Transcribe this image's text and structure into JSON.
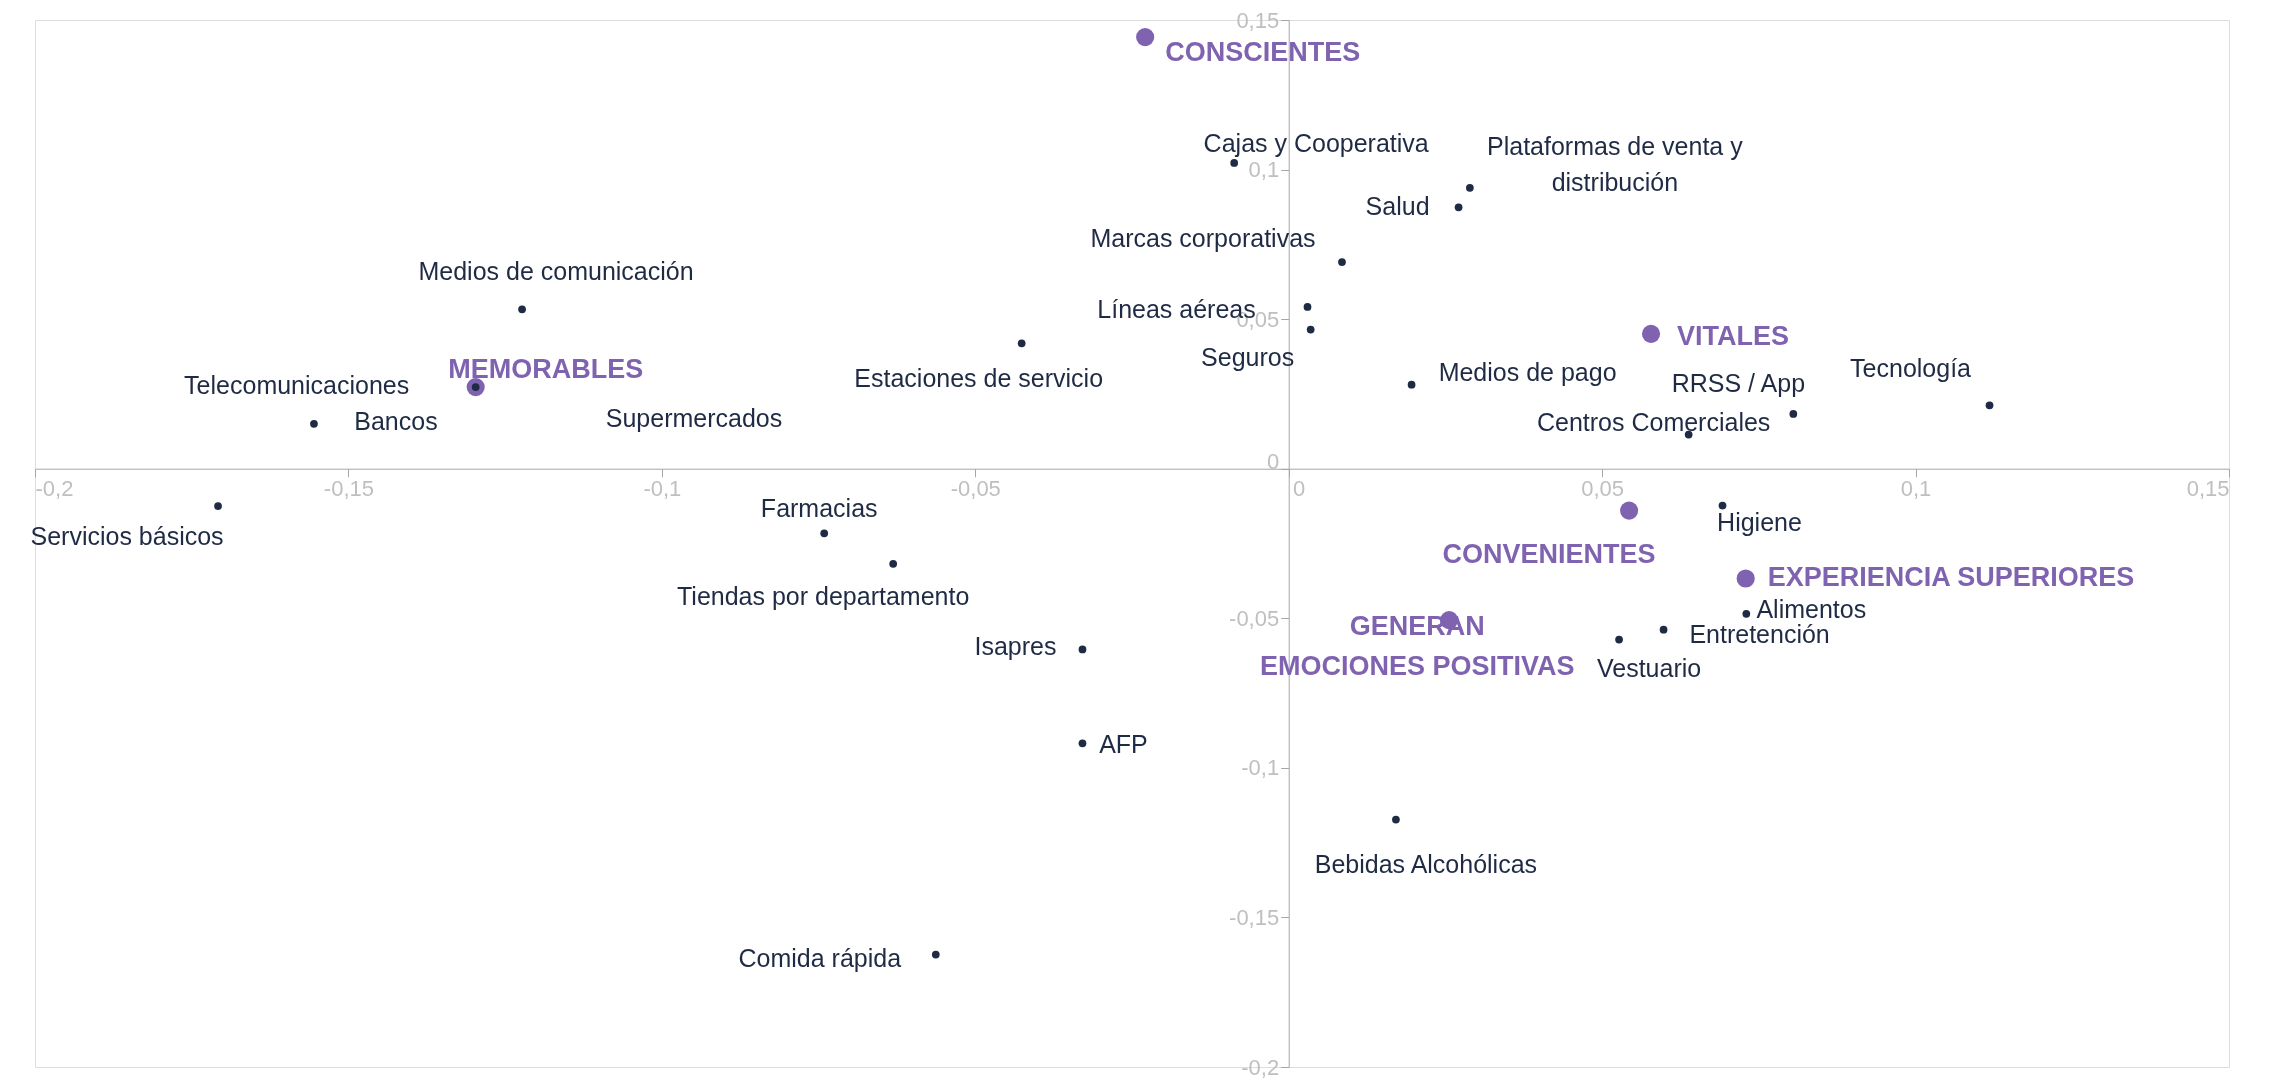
{
  "chart_data": {
    "type": "scatter",
    "marker": "circle",
    "grid": false,
    "xlim": [
      -0.2,
      0.15
    ],
    "ylim": [
      -0.2,
      0.15
    ],
    "xticks": [
      {
        "value": -0.2,
        "label": "-0,2"
      },
      {
        "value": -0.15,
        "label": "-0,15"
      },
      {
        "value": -0.1,
        "label": "-0,1"
      },
      {
        "value": -0.05,
        "label": "-0,05"
      },
      0,
      {
        "value": 0.05,
        "label": "0,05"
      },
      {
        "value": 0.1,
        "label": "0,1"
      },
      {
        "value": 0.15,
        "label": "0,15"
      }
    ],
    "yticks": [
      {
        "value": -0.2,
        "label": "-0,2"
      },
      {
        "value": -0.15,
        "label": "-0,15"
      },
      {
        "value": -0.1,
        "label": "-0,1"
      },
      {
        "value": -0.05,
        "label": "-0,05"
      },
      0,
      {
        "value": 0.05,
        "label": "0,05"
      },
      {
        "value": 0.1,
        "label": "0,1"
      },
      {
        "value": 0.15,
        "label": "0,15"
      }
    ],
    "series": [
      {
        "color": "#1f2a44",
        "x": [
          -0.1708,
          -0.1555,
          -0.1297,
          -0.1223,
          -0.0426,
          -0.0741,
          -0.0631,
          -0.0329,
          -0.0329,
          -0.0563,
          0.0171,
          -0.0087,
          0.0289,
          0.0271,
          0.0085,
          0.003,
          0.0035,
          0.0196,
          0.0805,
          0.0638,
          0.1118,
          0.0692,
          0.073,
          0.0598,
          0.0527
        ],
        "values": [
          -0.0125,
          0.015,
          0.0273,
          0.0533,
          0.0419,
          -0.0216,
          -0.0318,
          -0.0604,
          -0.0918,
          -0.1624,
          -0.1173,
          0.1022,
          0.0939,
          0.0874,
          0.0691,
          0.0541,
          0.0465,
          0.0281,
          0.0183,
          0.0114,
          0.0212,
          -0.0123,
          -0.0485,
          -0.0538,
          -0.0571
        ]
      },
      {
        "name": "CONSCIENTES",
        "color": "#7f63b0",
        "x": [
          -0.0229
        ],
        "values": [
          0.1443
        ]
      },
      {
        "name": "VITALES",
        "color": "#7f63b0",
        "x": [
          0.0578
        ],
        "values": [
          0.0451
        ]
      },
      {
        "name": "CONVENIENTES",
        "color": "#7f63b0",
        "x": [
          0.0543
        ],
        "values": [
          -0.014
        ]
      },
      {
        "name": "EXPERIENCIA SUPERIORES",
        "color": "#7f63b0",
        "x": [
          0.0729
        ],
        "values": [
          -0.0367
        ]
      },
      {
        "name": "GENERAN\nEMOCIONES POSITIVAS",
        "color": "#7f63b0",
        "x": [
          0.0256
        ],
        "values": [
          -0.0506
        ]
      },
      {
        "name": "MEMORABLES",
        "color": "#7f63b0",
        "x": [
          -0.1297
        ],
        "values": [
          0.0273
        ]
      }
    ],
    "annotations": [
      {
        "text": "Servicios básicos",
        "x": -0.1708,
        "y": -0.0125
      },
      {
        "text": "Bancos",
        "x": -0.1555,
        "y": 0.015
      },
      {
        "text": "Telecomunicaciones",
        "x": -0.1297,
        "y": 0.0273
      },
      "Supermercados",
      {
        "text": "Medios de comunicación",
        "x": -0.1223,
        "y": 0.0533
      },
      {
        "text": "Estaciones de servicio",
        "x": -0.0426,
        "y": 0.0419
      },
      {
        "text": "Farmacias",
        "x": -0.0741,
        "y": -0.0216
      },
      {
        "text": "Tiendas por departamento",
        "x": -0.0631,
        "y": -0.0318
      },
      {
        "text": "Isapres",
        "x": -0.0329,
        "y": -0.0604
      },
      {
        "text": "AFP",
        "x": -0.0329,
        "y": -0.0918
      },
      {
        "text": "Comida rápida",
        "x": -0.0563,
        "y": -0.1624
      },
      {
        "text": "Bebidas Alcohólicas",
        "x": 0.0171,
        "y": -0.1173
      },
      {
        "text": "Cajas y Cooperativa",
        "x": -0.0087,
        "y": 0.1022
      },
      {
        "text": "Plataformas de venta y\ndistribución",
        "x": 0.0289,
        "y": 0.0939
      },
      {
        "text": "Salud",
        "x": 0.0271,
        "y": 0.0874
      },
      {
        "text": "Marcas corporativas",
        "x": 0.0085,
        "y": 0.0691
      },
      {
        "text": "Líneas aéreas",
        "x": 0.003,
        "y": 0.0541
      },
      {
        "text": "Seguros",
        "x": 0.0035,
        "y": 0.0465
      },
      {
        "text": "Medios de pago",
        "x": 0.0196,
        "y": 0.0281
      },
      {
        "text": "RRSS / App",
        "x": 0.0805,
        "y": 0.0183
      },
      {
        "text": "Centros Comerciales",
        "x": 0.0638,
        "y": 0.0114
      },
      {
        "text": "Tecnología",
        "x": 0.1118,
        "y": 0.0212
      },
      {
        "text": "Higiene",
        "x": 0.0692,
        "y": -0.0123
      },
      {
        "text": "Alimentos",
        "x": 0.073,
        "y": -0.0485
      },
      {
        "text": "Entretención",
        "x": 0.0598,
        "y": -0.0538
      },
      {
        "text": "Vestuario",
        "x": 0.0527,
        "y": -0.0571
      }
    ]
  }
}
